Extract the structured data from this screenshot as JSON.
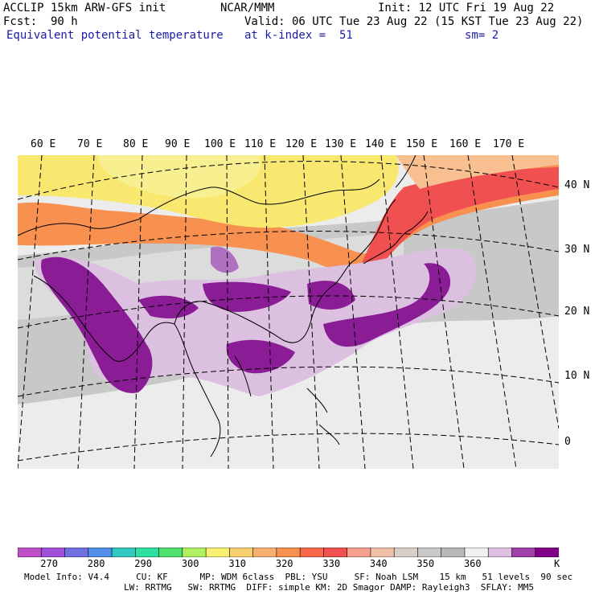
{
  "header": {
    "model": "ACCLIP 15km ARW-GFS init",
    "org": "NCAR/MMM",
    "init": "Init: 12 UTC Fri 19 Aug 22",
    "fcst": "Fcst:  90 h",
    "valid": "Valid: 06 UTC Tue 23 Aug 22 (15 KST Tue 23 Aug 22)",
    "field": "Equivalent potential temperature",
    "level": "at k-index =  51",
    "smooth": "sm= 2"
  },
  "lon_labels": [
    "60 E",
    "70 E",
    "80 E",
    "90 E",
    "100 E",
    "110 E",
    "120 E",
    "130 E",
    "140 E",
    "150 E",
    "160 E",
    "170 E"
  ],
  "lat_labels": [
    "40 N",
    "30 N",
    "20 N",
    "10 N",
    "0"
  ],
  "colorbar": {
    "unit": "K",
    "tick_labels": [
      "270",
      "280",
      "290",
      "300",
      "310",
      "320",
      "330",
      "340",
      "350",
      "360"
    ],
    "colors": [
      "#c050c8",
      "#a050d8",
      "#7070e0",
      "#5090e8",
      "#30c8c0",
      "#30e0a0",
      "#50e070",
      "#b0f060",
      "#f8f070",
      "#f8d070",
      "#f8b070",
      "#f89050",
      "#f86848",
      "#f05050",
      "#f8a090",
      "#f0c0a8",
      "#d8d0c8",
      "#c8c8c8",
      "#b8b8b8",
      "#f0f0f0",
      "#e0c0e0",
      "#a040a8",
      "#800088"
    ]
  },
  "footer": {
    "line1": "Model Info: V4.4     CU: KF      MP: WDM 6class  PBL: YSU     SF: Noah LSM    15 km   51 levels  90 sec",
    "line2": "LW: RRTMG   SW: RRTMG  DIFF: simple KM: 2D Smagor DAMP: Rayleigh3  SFLAY: MM5"
  }
}
